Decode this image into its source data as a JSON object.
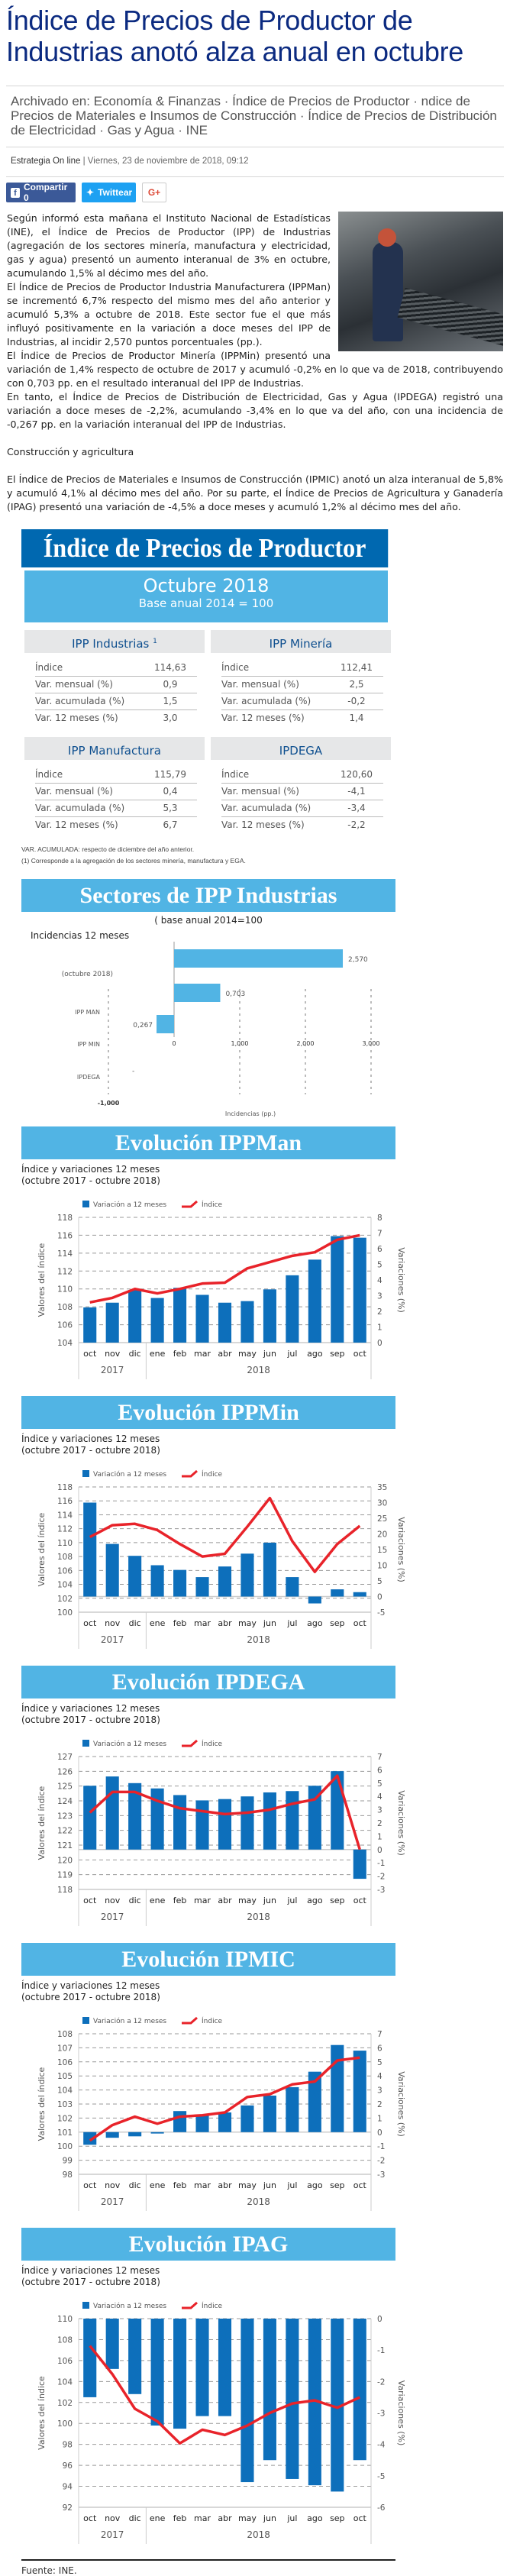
{
  "article": {
    "title": "Índice de Precios de Productor de Industrias anotó alza anual en octubre",
    "archived": "Archivado en: Economía & Finanzas · Índice de Precios de Productor · ndice de Precios de Materiales e Insumos de Construcción · Índice de Precios de Distribución de Electricidad · Gas y Agua · INE",
    "author": "Estrategia On line",
    "date": "| Viernes, 23 de noviembre de 2018, 09:12",
    "share": {
      "facebook": "Compartir 0",
      "twitter": "Twittear",
      "gplus": "G+"
    },
    "paragraphs": [
      "Según informó esta mañana el Instituto Nacional de Estadísticas (INE), el Índice de Precios de Productor (IPP) de Industrias (agregación de los sectores minería, manufactura y electricidad, gas y agua) presentó un aumento interanual de 3% en octubre, acumulando 1,5% al décimo mes del año.",
      "El Índice de Precios de Productor Industria Manufacturera (IPPMan) se incrementó 6,7% respecto del mismo mes del año anterior y acumuló 5,3% a octubre de 2018. Este sector fue el que más influyó positivamente en la variación a doce meses del IPP de Industrias, al incidir 2,570 puntos porcentuales (pp.).",
      "El Índice de Precios de Productor Minería (IPPMin) presentó una variación de 1,4% respecto de octubre de 2017 y acumuló -0,2% en lo que va de 2018, contribuyendo con 0,703 pp. en el resultado interanual del IPP de Industrias.",
      "En tanto, el Índice de Precios de Distribución de Electricidad, Gas y Agua (IPDEGA) registró una variación a doce meses de -2,2%, acumulando -3,4% en lo que va del año, con una incidencia de -0,267 pp. en la variación interanual del IPP de Industrias.",
      "Construcción y agricultura",
      "El Índice de Precios de Materiales e Insumos de Construcción (IPMIC) anotó un alza interanual de 5,8% y acumuló 4,1% al décimo mes del año.   Por su parte, el Índice de Precios de Agricultura y Ganadería (IPAG) presentó una variación de -4,5% a doce meses y acumuló 1,2% al décimo mes del año."
    ]
  },
  "infographic": {
    "title": "Índice de Precios de Productor",
    "period": "Octubre 2018",
    "base": "Base anual 2014 = 100",
    "tables": [
      {
        "name": "IPP Industrias",
        "sup": "1",
        "rows": [
          [
            "Índice",
            "114,63"
          ],
          [
            "Var. mensual (%)",
            "0,9"
          ],
          [
            "Var. acumulada (%)",
            "1,5"
          ],
          [
            "Var. 12 meses (%)",
            "3,0"
          ]
        ]
      },
      {
        "name": "IPP Minería",
        "sup": "",
        "rows": [
          [
            "Índice",
            "112,41"
          ],
          [
            "Var. mensual (%)",
            "2,5"
          ],
          [
            "Var. acumulada (%)",
            "-0,2"
          ],
          [
            "Var. 12 meses (%)",
            "1,4"
          ]
        ]
      },
      {
        "name": "IPP Manufactura",
        "sup": "",
        "rows": [
          [
            "Índice",
            "115,79"
          ],
          [
            "Var. mensual (%)",
            "0,4"
          ],
          [
            "Var. acumulada (%)",
            "5,3"
          ],
          [
            "Var. 12 meses (%)",
            "6,7"
          ]
        ]
      },
      {
        "name": "IPDEGA",
        "sup": "",
        "rows": [
          [
            "Índice",
            "120,60"
          ],
          [
            "Var. mensual (%)",
            "-4,1"
          ],
          [
            "Var. acumulada (%)",
            "-3,4"
          ],
          [
            "Var. 12 meses (%)",
            "-2,2"
          ]
        ]
      }
    ],
    "note1": "VAR. ACUMULADA:   respecto de diciembre del año anterior.",
    "note2": "(1) Corresponde a la agregación de los sectores minería, manufactura y EGA.",
    "sectores_title": "Sectores de IPP Industrias",
    "sectores_base": "( base anual 2014=100",
    "sectores_sub": "Incidencias 12 meses",
    "sections": [
      {
        "title": "Evolución IPPMan",
        "sub1": "Índice y variaciones 12 meses",
        "sub2": "(octubre 2017 -  octubre 2018)"
      },
      {
        "title": "Evolución IPPMin",
        "sub1": "Índice y variaciones 12 meses",
        "sub2": "(octubre 2017 -  octubre 2018)"
      },
      {
        "title": "Evolución IPDEGA",
        "sub1": "Índice y variaciones 12 meses",
        "sub2": "(octubre 2017 -  octubre 2018)"
      },
      {
        "title": "Evolución IPMIC",
        "sub1": "Índice y variaciones 12 meses",
        "sub2": "(octubre 2017 -  octubre 2018)"
      },
      {
        "title": "Evolución IPAG",
        "sub1": "Índice y variaciones 12 meses",
        "sub2": "(octubre 2017 - octubre 2018)"
      }
    ],
    "source": "Fuente: INE."
  },
  "colors": {
    "bar": "#0d6fbb",
    "line": "#e8232a",
    "banner": "#51b4e4",
    "banner_dark": "#0068b0",
    "title": "#0b2a80"
  },
  "chart_data": [
    {
      "type": "bar",
      "orientation": "horizontal",
      "categories": [
        "IPP MAN",
        "IPP MIN",
        "IPDEGA"
      ],
      "values": [
        2.57,
        0.703,
        -0.267
      ],
      "value_labels": [
        "2,570",
        "0,703",
        "0,267"
      ],
      "annotation": "(octubre 2018)",
      "dash_label": "-",
      "xticks": [
        -1,
        0,
        1,
        2,
        3
      ],
      "xtick_labels": [
        "-1,000",
        "0",
        "1,000",
        "2,000",
        "3,000"
      ],
      "xlabel": "Incidencias (pp.)",
      "xlim": [
        -1,
        3
      ]
    },
    {
      "type": "bar+line",
      "x_labels": [
        "oct",
        "nov",
        "dic",
        "ene",
        "feb",
        "mar",
        "abr",
        "may",
        "jun",
        "jul",
        "ago",
        "sep",
        "oct"
      ],
      "years": [
        "2017",
        "2018"
      ],
      "legend": [
        "Variación a 12 meses",
        "Índice"
      ],
      "ylabel_left": "Valores del índice",
      "ylabel_right": "Variaciones (%)",
      "ylim_left": [
        104,
        118
      ],
      "yticks_left": [
        "104",
        "106",
        "108",
        "110",
        "112",
        "114",
        "116",
        "118"
      ],
      "ylim_right": [
        0,
        8
      ],
      "yticks_right": [
        "0",
        "1",
        "2",
        "3",
        "4",
        "5",
        "6",
        "7",
        "8"
      ],
      "bars": [
        2.25,
        2.55,
        3.35,
        2.85,
        3.5,
        3.05,
        2.55,
        2.65,
        3.4,
        4.3,
        5.3,
        6.8,
        6.7
      ],
      "line": [
        108.5,
        109.0,
        110.0,
        109.5,
        110.0,
        110.6,
        110.7,
        112.3,
        113.0,
        113.7,
        114.1,
        115.5,
        116.0
      ]
    },
    {
      "type": "bar+line",
      "x_labels": [
        "oct",
        "nov",
        "dic",
        "ene",
        "feb",
        "mar",
        "abr",
        "may",
        "jun",
        "jul",
        "ago",
        "sep",
        "oct"
      ],
      "years": [
        "2017",
        "2018"
      ],
      "legend": [
        "Variación a 12 meses",
        "Índice"
      ],
      "ylabel_left": "Valores del índice",
      "ylabel_right": "Variaciones (%)",
      "ylim_left": [
        100,
        118
      ],
      "yticks_left": [
        "100",
        "102",
        "104",
        "106",
        "108",
        "110",
        "112",
        "114",
        "116",
        "118"
      ],
      "ylim_right": [
        -5,
        35
      ],
      "yticks_right": [
        "-5",
        "0",
        "5",
        "10",
        "15",
        "20",
        "25",
        "30",
        "35"
      ],
      "bars": [
        30,
        16.8,
        13,
        10,
        8.5,
        6.2,
        9.6,
        13.7,
        17.2,
        6.2,
        -2.2,
        2.3,
        1.4
      ],
      "line": [
        110.8,
        112.5,
        112.7,
        111.8,
        109.8,
        108.0,
        108.4,
        112.3,
        116.4,
        110.2,
        105.8,
        109.8,
        112.4
      ]
    },
    {
      "type": "bar+line",
      "x_labels": [
        "oct",
        "nov",
        "dic",
        "ene",
        "feb",
        "mar",
        "abr",
        "may",
        "jun",
        "jul",
        "ago",
        "sep",
        "oct"
      ],
      "years": [
        "2017",
        "2018"
      ],
      "legend": [
        "Variación a 12 meses",
        "Índice"
      ],
      "ylabel_left": "Valores del índice",
      "ylabel_right": "Variaciones (%)",
      "ylim_left": [
        118,
        127
      ],
      "yticks_left": [
        "118",
        "119",
        "120",
        "121",
        "122",
        "123",
        "124",
        "125",
        "126",
        "127"
      ],
      "ylim_right": [
        -3,
        7
      ],
      "yticks_right": [
        "-3",
        "-2",
        "-1",
        "0",
        "1",
        "2",
        "3",
        "4",
        "5",
        "6",
        "7"
      ],
      "bars": [
        4.8,
        5.5,
        5.0,
        4.6,
        4.1,
        3.7,
        3.8,
        4.0,
        4.3,
        4.4,
        4.8,
        5.9,
        -2.2
      ],
      "line": [
        123.2,
        124.6,
        124.6,
        124.0,
        123.5,
        123.3,
        123.1,
        123.2,
        123.4,
        123.8,
        124.1,
        125.7,
        120.7
      ]
    },
    {
      "type": "bar+line",
      "x_labels": [
        "oct",
        "nov",
        "dic",
        "ene",
        "feb",
        "mar",
        "abr",
        "may",
        "jun",
        "jul",
        "ago",
        "sep",
        "oct"
      ],
      "years": [
        "2017",
        "2018"
      ],
      "legend": [
        "Variación a 12 meses",
        "Índice"
      ],
      "ylabel_left": "Valores del índice",
      "ylabel_right": "Variaciones (%)",
      "ylim_left": [
        98,
        108
      ],
      "yticks_left": [
        "98",
        "99",
        "100",
        "101",
        "102",
        "103",
        "104",
        "105",
        "106",
        "107",
        "108"
      ],
      "ylim_right": [
        -3,
        7
      ],
      "yticks_right": [
        "-3",
        "-2",
        "-1",
        "0",
        "1",
        "2",
        "3",
        "4",
        "5",
        "6",
        "7"
      ],
      "bars": [
        -0.9,
        -0.4,
        -0.3,
        -0.1,
        1.5,
        1.2,
        1.4,
        1.9,
        2.6,
        3.2,
        4.3,
        6.2,
        5.8
      ],
      "line": [
        100.4,
        101.5,
        102.1,
        101.6,
        102.1,
        102.2,
        102.4,
        103.5,
        103.7,
        104.4,
        104.6,
        106.1,
        106.3
      ]
    },
    {
      "type": "bar+line",
      "x_labels": [
        "oct",
        "nov",
        "dic",
        "ene",
        "feb",
        "mar",
        "abr",
        "may",
        "jun",
        "jul",
        "ago",
        "sep",
        "oct"
      ],
      "years": [
        "2017",
        "2018"
      ],
      "legend": [
        "Variación a 12 meses",
        "Índice"
      ],
      "ylabel_left": "Valores del índice",
      "ylabel_right": "Variaciones (%)",
      "ylim_left": [
        92,
        110
      ],
      "yticks_left": [
        "92",
        "94",
        "96",
        "98",
        "100",
        "102",
        "104",
        "106",
        "108",
        "110"
      ],
      "ylim_right": [
        -6,
        0
      ],
      "yticks_right": [
        "-6",
        "-5",
        "-4",
        "-3",
        "-2",
        "-1",
        "0"
      ],
      "bars": [
        -2.5,
        -1.6,
        -2.4,
        -3.4,
        -3.5,
        -3.1,
        -3.1,
        -5.2,
        -4.5,
        -5.1,
        -5.3,
        -5.5,
        -4.5
      ],
      "line": [
        107.4,
        104.7,
        101.4,
        100.2,
        98.1,
        99.4,
        98.9,
        99.8,
        101.0,
        101.9,
        102.2,
        101.5,
        102.5
      ]
    }
  ]
}
